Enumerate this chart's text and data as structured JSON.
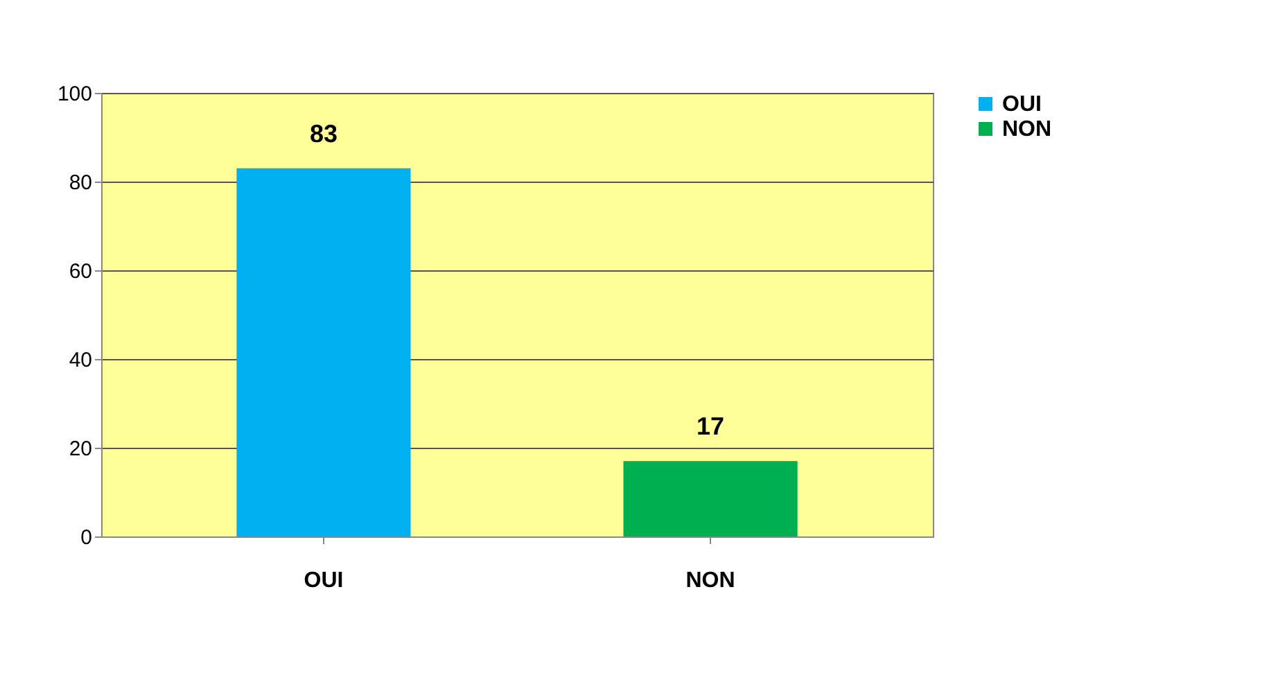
{
  "chart_data": {
    "type": "bar",
    "categories": [
      "OUI",
      "NON"
    ],
    "series": [
      {
        "name": "OUI",
        "color": "#00b0f0",
        "values": [
          83,
          null
        ]
      },
      {
        "name": "NON",
        "color": "#00b050",
        "values": [
          null,
          17
        ]
      }
    ],
    "ylim": [
      0,
      100
    ],
    "yticks": [
      0,
      20,
      40,
      60,
      80,
      100
    ],
    "grid": "y",
    "legend": "right",
    "data_labels": true
  }
}
